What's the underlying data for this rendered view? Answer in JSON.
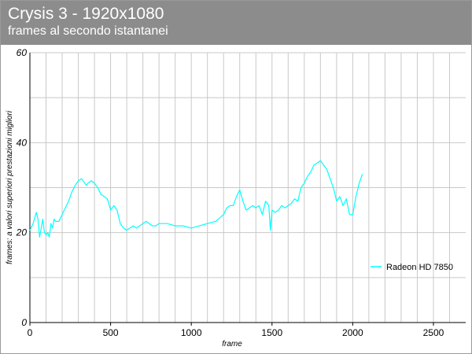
{
  "header": {
    "title": "Crysis 3 - 1920x1080",
    "subtitle": "frames al secondo istantanei"
  },
  "chart_data": {
    "type": "line",
    "title": "Crysis 3 - 1920x1080",
    "subtitle": "frames al secondo istantanei",
    "xlabel": "frame",
    "ylabel": "frames: a valori superiori prestazioni migliori",
    "xlim": [
      0,
      2700
    ],
    "ylim": [
      0,
      60
    ],
    "x_ticks": [
      0,
      500,
      1000,
      1500,
      2000,
      2500
    ],
    "y_ticks": [
      0,
      20,
      40,
      60
    ],
    "grid": true,
    "legend": "center-right",
    "colors": {
      "series": "#00ffff",
      "grid": "#c8c8c8",
      "axis": "#000000"
    },
    "series": [
      {
        "name": "Radeon HD 7850",
        "x": [
          0,
          20,
          40,
          50,
          60,
          70,
          80,
          90,
          100,
          110,
          120,
          130,
          140,
          150,
          160,
          180,
          200,
          220,
          240,
          260,
          280,
          300,
          320,
          340,
          350,
          360,
          380,
          400,
          420,
          440,
          460,
          480,
          500,
          520,
          540,
          560,
          580,
          600,
          620,
          640,
          660,
          680,
          700,
          720,
          740,
          760,
          780,
          800,
          850,
          900,
          950,
          1000,
          1050,
          1100,
          1150,
          1200,
          1220,
          1240,
          1260,
          1280,
          1300,
          1320,
          1340,
          1360,
          1380,
          1400,
          1420,
          1440,
          1460,
          1480,
          1490,
          1500,
          1520,
          1540,
          1560,
          1580,
          1600,
          1620,
          1640,
          1660,
          1680,
          1700,
          1720,
          1740,
          1760,
          1780,
          1800,
          1820,
          1840,
          1860,
          1880,
          1900,
          1920,
          1940,
          1960,
          1980,
          2000,
          2020,
          2040,
          2060
        ],
        "values": [
          20.5,
          22,
          24.5,
          23,
          19,
          21,
          23,
          20,
          19.5,
          20,
          19,
          22,
          21,
          23,
          22.5,
          22.5,
          24,
          25.5,
          27,
          29,
          30.5,
          31.5,
          32,
          31,
          30.5,
          31,
          31.5,
          31,
          30,
          28.5,
          28,
          27.5,
          25,
          26,
          25,
          22,
          21,
          20.5,
          21,
          21.5,
          21,
          21.5,
          22,
          22.5,
          22,
          21.5,
          21.5,
          22,
          22,
          21.5,
          21.5,
          21,
          21.5,
          22,
          22.5,
          24,
          25.5,
          26,
          26,
          28,
          29.5,
          27,
          25,
          25.5,
          26,
          25.5,
          26,
          24,
          27,
          26,
          20.5,
          25,
          24.5,
          25,
          26,
          25.5,
          26,
          26.5,
          27.5,
          27,
          30,
          31,
          32.5,
          33.5,
          35,
          35.5,
          36,
          35,
          34,
          32,
          30,
          27,
          28,
          26,
          27.5,
          24,
          24,
          28,
          31,
          33
        ]
      }
    ]
  }
}
